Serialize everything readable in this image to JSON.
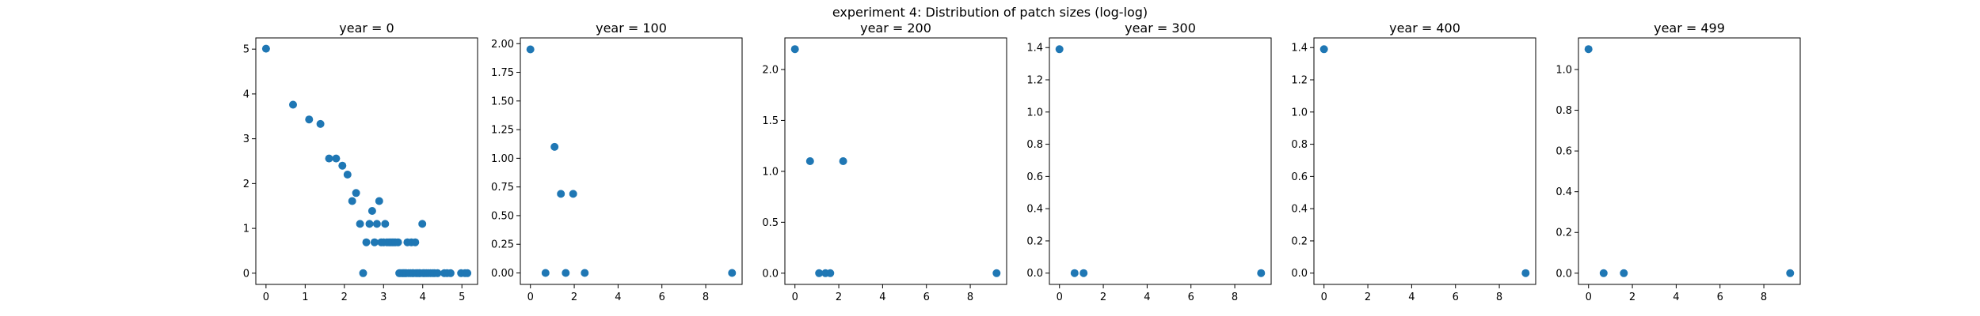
{
  "suptitle": "experiment 4: Distribution of patch sizes (log-log)",
  "marker_color": "#1f77b4",
  "chart_data": [
    {
      "type": "scatter",
      "title": "year = 0",
      "xlim": [
        -0.26,
        5.4
      ],
      "ylim": [
        -0.25,
        5.25
      ],
      "xticks": [
        0,
        1,
        2,
        3,
        4,
        5
      ],
      "yticks": [
        0,
        1,
        2,
        3,
        4,
        5
      ],
      "xticklabels": [
        "0",
        "1",
        "2",
        "3",
        "4",
        "5"
      ],
      "yticklabels": [
        "0",
        "1",
        "2",
        "3",
        "4",
        "5"
      ],
      "points": [
        [
          0,
          5.01
        ],
        [
          0.69,
          3.76
        ],
        [
          1.1,
          3.43
        ],
        [
          1.39,
          3.33
        ],
        [
          1.61,
          2.56
        ],
        [
          1.79,
          2.56
        ],
        [
          1.95,
          2.4
        ],
        [
          2.08,
          2.2
        ],
        [
          2.2,
          1.61
        ],
        [
          2.3,
          1.79
        ],
        [
          2.4,
          1.1
        ],
        [
          2.48,
          0
        ],
        [
          2.56,
          0.69
        ],
        [
          2.64,
          1.1
        ],
        [
          2.71,
          1.39
        ],
        [
          2.77,
          0.69
        ],
        [
          2.83,
          1.1
        ],
        [
          2.89,
          1.61
        ],
        [
          2.94,
          0.69
        ],
        [
          3.0,
          0.69
        ],
        [
          3.04,
          1.1
        ],
        [
          3.09,
          0.69
        ],
        [
          3.14,
          0.69
        ],
        [
          3.18,
          0.69
        ],
        [
          3.22,
          0.69
        ],
        [
          3.26,
          0.69
        ],
        [
          3.3,
          0.69
        ],
        [
          3.37,
          0.69
        ],
        [
          3.4,
          0
        ],
        [
          3.43,
          0
        ],
        [
          3.47,
          0
        ],
        [
          3.5,
          0
        ],
        [
          3.53,
          0
        ],
        [
          3.56,
          0
        ],
        [
          3.58,
          0
        ],
        [
          3.61,
          0.69
        ],
        [
          3.64,
          0
        ],
        [
          3.69,
          0
        ],
        [
          3.71,
          0.69
        ],
        [
          3.74,
          0
        ],
        [
          3.76,
          0
        ],
        [
          3.81,
          0.69
        ],
        [
          3.83,
          0
        ],
        [
          3.87,
          0
        ],
        [
          3.91,
          0
        ],
        [
          3.93,
          0
        ],
        [
          3.99,
          1.1
        ],
        [
          4.01,
          0
        ],
        [
          4.04,
          0
        ],
        [
          4.09,
          0
        ],
        [
          4.14,
          0
        ],
        [
          4.2,
          0
        ],
        [
          4.26,
          0
        ],
        [
          4.3,
          0
        ],
        [
          4.38,
          0
        ],
        [
          4.55,
          0
        ],
        [
          4.62,
          0
        ],
        [
          4.71,
          0
        ],
        [
          4.98,
          0
        ],
        [
          5.08,
          0
        ],
        [
          5.14,
          0
        ]
      ]
    },
    {
      "type": "scatter",
      "title": "year = 100",
      "xlim": [
        -0.46,
        9.66
      ],
      "ylim": [
        -0.1,
        2.05
      ],
      "xticks": [
        0,
        2,
        4,
        6,
        8
      ],
      "yticks": [
        0,
        0.25,
        0.5,
        0.75,
        1.0,
        1.25,
        1.5,
        1.75,
        2.0
      ],
      "xticklabels": [
        "0",
        "2",
        "4",
        "6",
        "8"
      ],
      "yticklabels": [
        "0.00",
        "0.25",
        "0.50",
        "0.75",
        "1.00",
        "1.25",
        "1.50",
        "1.75",
        "2.00"
      ],
      "points": [
        [
          0,
          1.95
        ],
        [
          0.69,
          0
        ],
        [
          1.1,
          1.1
        ],
        [
          1.39,
          0.69
        ],
        [
          1.61,
          0
        ],
        [
          1.95,
          0.69
        ],
        [
          2.48,
          0
        ],
        [
          9.2,
          0
        ]
      ]
    },
    {
      "type": "scatter",
      "title": "year = 200",
      "xlim": [
        -0.46,
        9.66
      ],
      "ylim": [
        -0.11,
        2.31
      ],
      "xticks": [
        0,
        2,
        4,
        6,
        8
      ],
      "yticks": [
        0,
        0.5,
        1.0,
        1.5,
        2.0
      ],
      "xticklabels": [
        "0",
        "2",
        "4",
        "6",
        "8"
      ],
      "yticklabels": [
        "0.0",
        "0.5",
        "1.0",
        "1.5",
        "2.0"
      ],
      "points": [
        [
          0,
          2.2
        ],
        [
          0.69,
          1.1
        ],
        [
          1.1,
          0
        ],
        [
          1.39,
          0
        ],
        [
          1.61,
          0
        ],
        [
          2.2,
          1.1
        ],
        [
          9.2,
          0
        ]
      ]
    },
    {
      "type": "scatter",
      "title": "year = 300",
      "xlim": [
        -0.46,
        9.66
      ],
      "ylim": [
        -0.07,
        1.46
      ],
      "xticks": [
        0,
        2,
        4,
        6,
        8
      ],
      "yticks": [
        0,
        0.2,
        0.4,
        0.6,
        0.8,
        1.0,
        1.2,
        1.4
      ],
      "xticklabels": [
        "0",
        "2",
        "4",
        "6",
        "8"
      ],
      "yticklabels": [
        "0.0",
        "0.2",
        "0.4",
        "0.6",
        "0.8",
        "1.0",
        "1.2",
        "1.4"
      ],
      "points": [
        [
          0,
          1.39
        ],
        [
          0.69,
          0
        ],
        [
          1.1,
          0
        ],
        [
          9.2,
          0
        ]
      ]
    },
    {
      "type": "scatter",
      "title": "year = 400",
      "xlim": [
        -0.46,
        9.66
      ],
      "ylim": [
        -0.07,
        1.46
      ],
      "xticks": [
        0,
        2,
        4,
        6,
        8
      ],
      "yticks": [
        0,
        0.2,
        0.4,
        0.6,
        0.8,
        1.0,
        1.2,
        1.4
      ],
      "xticklabels": [
        "0",
        "2",
        "4",
        "6",
        "8"
      ],
      "yticklabels": [
        "0.0",
        "0.2",
        "0.4",
        "0.6",
        "0.8",
        "1.0",
        "1.2",
        "1.4"
      ],
      "points": [
        [
          0,
          1.39
        ],
        [
          9.2,
          0
        ]
      ]
    },
    {
      "type": "scatter",
      "title": "year = 499",
      "xlim": [
        -0.46,
        9.66
      ],
      "ylim": [
        -0.055,
        1.155
      ],
      "xticks": [
        0,
        2,
        4,
        6,
        8
      ],
      "yticks": [
        0,
        0.2,
        0.4,
        0.6,
        0.8,
        1.0
      ],
      "xticklabels": [
        "0",
        "2",
        "4",
        "6",
        "8"
      ],
      "yticklabels": [
        "0.0",
        "0.2",
        "0.4",
        "0.6",
        "0.8",
        "1.0"
      ],
      "points": [
        [
          0,
          1.1
        ],
        [
          0.69,
          0
        ],
        [
          1.61,
          0
        ],
        [
          9.2,
          0
        ]
      ]
    }
  ]
}
